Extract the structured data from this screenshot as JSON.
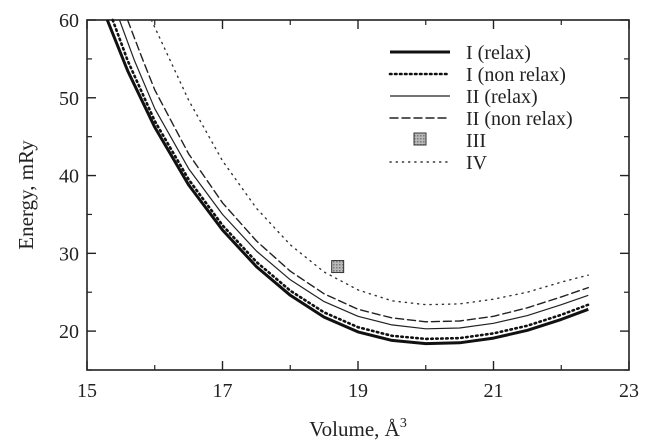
{
  "chart_data": {
    "type": "line",
    "xlabel": "Volume, Å",
    "xlabel_exponent": "3",
    "ylabel": "Energy, mRy",
    "xlim": [
      15,
      23
    ],
    "ylim": [
      15,
      60
    ],
    "x_ticks": [
      "15",
      "17",
      "19",
      "21",
      "23"
    ],
    "y_ticks": [
      "20",
      "30",
      "40",
      "50",
      "60"
    ],
    "grid": false,
    "legend_position": "top-right",
    "series": [
      {
        "name": "I (relax)",
        "style": "solid-thick",
        "color": "#111111",
        "x": [
          15.3,
          15.6,
          16.0,
          16.5,
          17.0,
          17.5,
          18.0,
          18.5,
          19.0,
          19.5,
          20.0,
          20.5,
          21.0,
          21.5,
          22.0,
          22.4
        ],
        "y": [
          60.0,
          53.5,
          46.2,
          38.8,
          33.0,
          28.3,
          24.6,
          21.8,
          19.9,
          18.8,
          18.4,
          18.5,
          19.1,
          20.1,
          21.5,
          22.8
        ]
      },
      {
        "name": "I (non relax)",
        "style": "dotted-thick",
        "color": "#111111",
        "x": [
          15.38,
          15.6,
          16.0,
          16.5,
          17.0,
          17.5,
          18.0,
          18.5,
          19.0,
          19.5,
          20.0,
          20.5,
          21.0,
          21.5,
          22.0,
          22.4
        ],
        "y": [
          60.0,
          54.8,
          47.0,
          39.5,
          33.6,
          28.9,
          25.2,
          22.4,
          20.5,
          19.4,
          19.0,
          19.1,
          19.7,
          20.7,
          22.1,
          23.4
        ]
      },
      {
        "name": "II (relax)",
        "style": "solid-thin",
        "color": "#222222",
        "x": [
          15.48,
          15.7,
          16.0,
          16.5,
          17.0,
          17.5,
          18.0,
          18.5,
          19.0,
          19.5,
          20.0,
          20.5,
          21.0,
          21.5,
          22.0,
          22.4
        ],
        "y": [
          60.0,
          54.8,
          48.6,
          40.9,
          35.0,
          30.3,
          26.6,
          23.8,
          21.9,
          20.8,
          20.3,
          20.4,
          21.0,
          22.0,
          23.4,
          24.6
        ]
      },
      {
        "name": "II (non relax)",
        "style": "dashed",
        "color": "#222222",
        "x": [
          15.6,
          15.8,
          16.0,
          16.5,
          17.0,
          17.5,
          18.0,
          18.5,
          19.0,
          19.5,
          20.0,
          20.5,
          21.0,
          21.5,
          22.0,
          22.4
        ],
        "y": [
          60.0,
          55.4,
          51.0,
          42.8,
          36.5,
          31.6,
          27.7,
          24.8,
          22.8,
          21.7,
          21.2,
          21.3,
          21.9,
          23.0,
          24.4,
          25.6
        ]
      },
      {
        "name": "III",
        "style": "marker",
        "color": "#888888",
        "x": [
          18.7
        ],
        "y": [
          28.3
        ]
      },
      {
        "name": "IV",
        "style": "dotted-thin",
        "color": "#333333",
        "x": [
          15.95,
          16.5,
          17.0,
          17.5,
          18.0,
          18.5,
          19.0,
          19.5,
          20.0,
          20.5,
          21.0,
          21.5,
          22.0,
          22.4
        ],
        "y": [
          60.0,
          49.7,
          41.9,
          35.8,
          31.1,
          27.6,
          25.3,
          23.9,
          23.4,
          23.5,
          24.1,
          25.0,
          26.3,
          27.2
        ]
      }
    ]
  }
}
